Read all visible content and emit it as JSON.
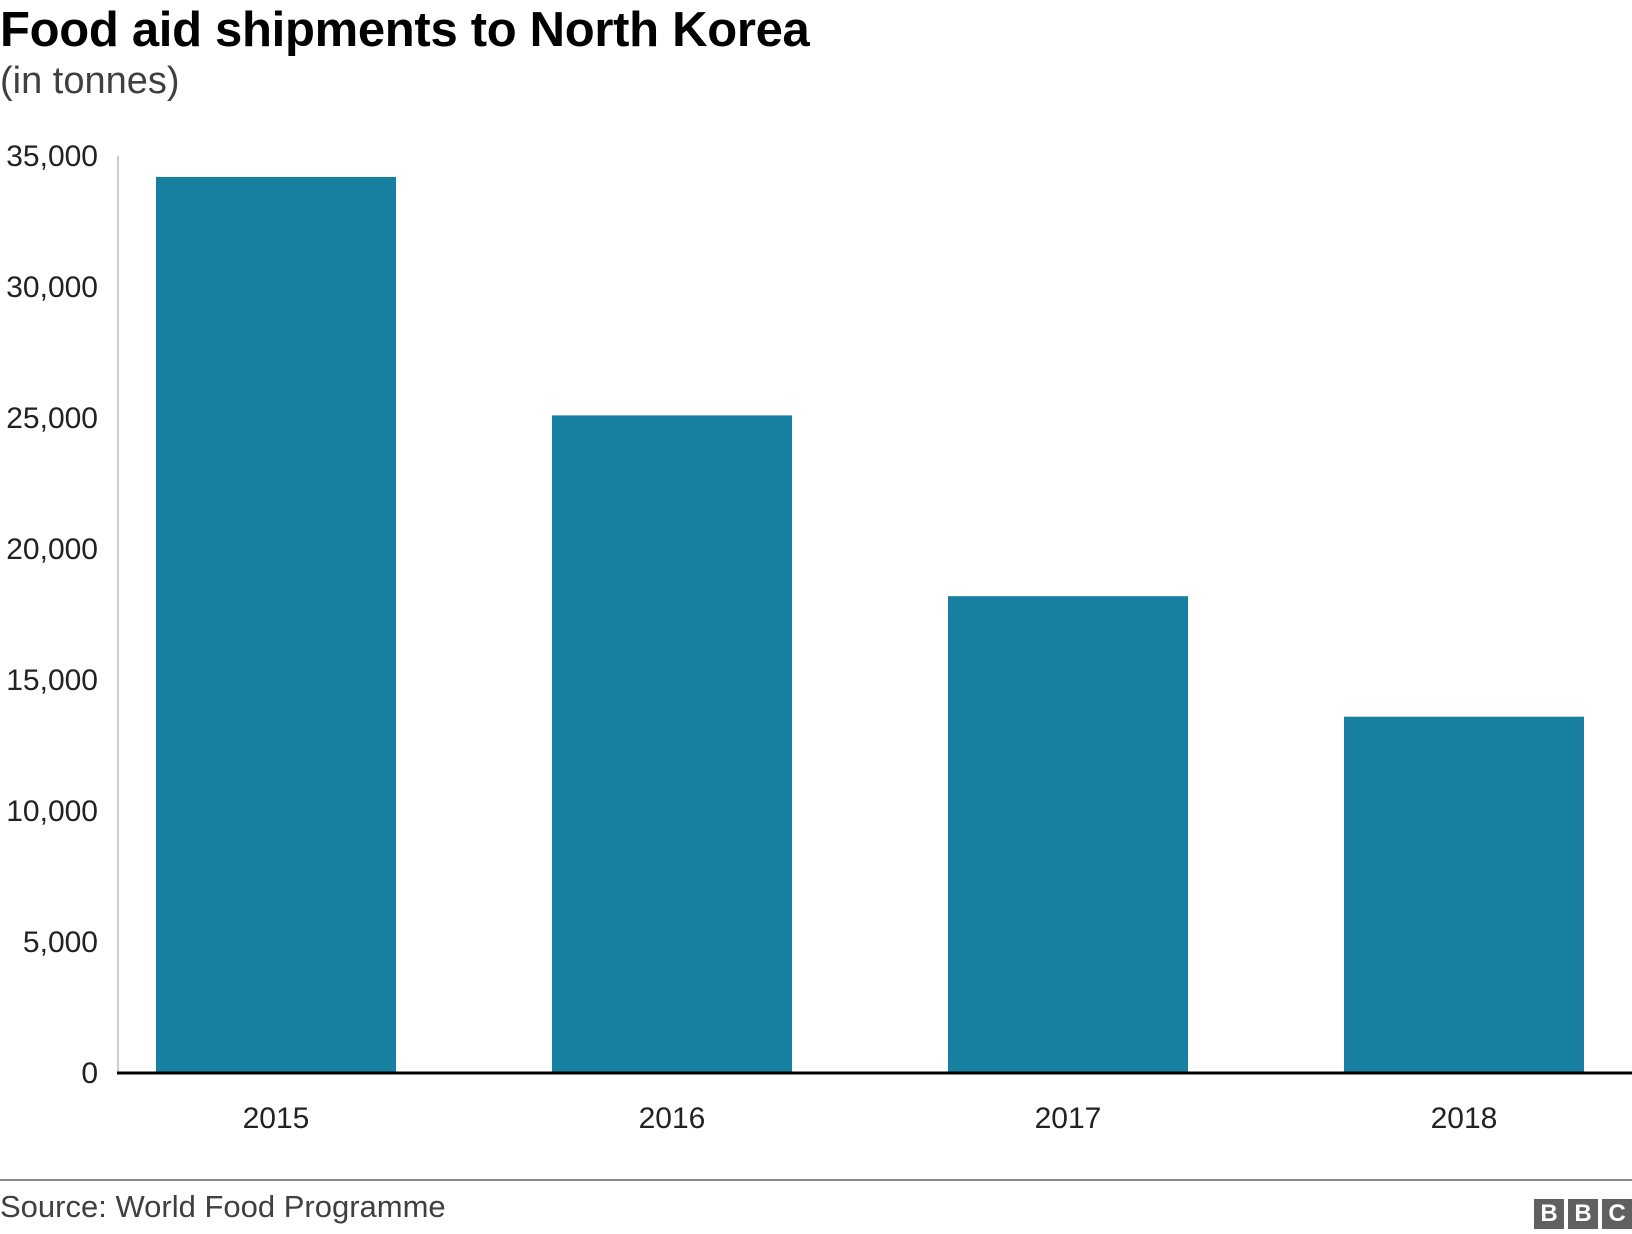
{
  "chart_data": {
    "type": "bar",
    "title": "Food aid shipments to North Korea",
    "subtitle": "(in tonnes)",
    "categories": [
      "2015",
      "2016",
      "2017",
      "2018"
    ],
    "values": [
      34200,
      25100,
      18200,
      13600
    ],
    "ylim": [
      0,
      35000
    ],
    "yticks": [
      0,
      5000,
      10000,
      15000,
      20000,
      25000,
      30000,
      35000
    ],
    "ytick_labels": [
      "0",
      "5,000",
      "10,000",
      "15,000",
      "20,000",
      "25,000",
      "30,000",
      "35,000"
    ],
    "grid": false,
    "bar_color": "#1780a1",
    "legend": "none"
  },
  "footer": {
    "source": "Source: World Food Programme",
    "logo": [
      "B",
      "B",
      "C"
    ]
  }
}
